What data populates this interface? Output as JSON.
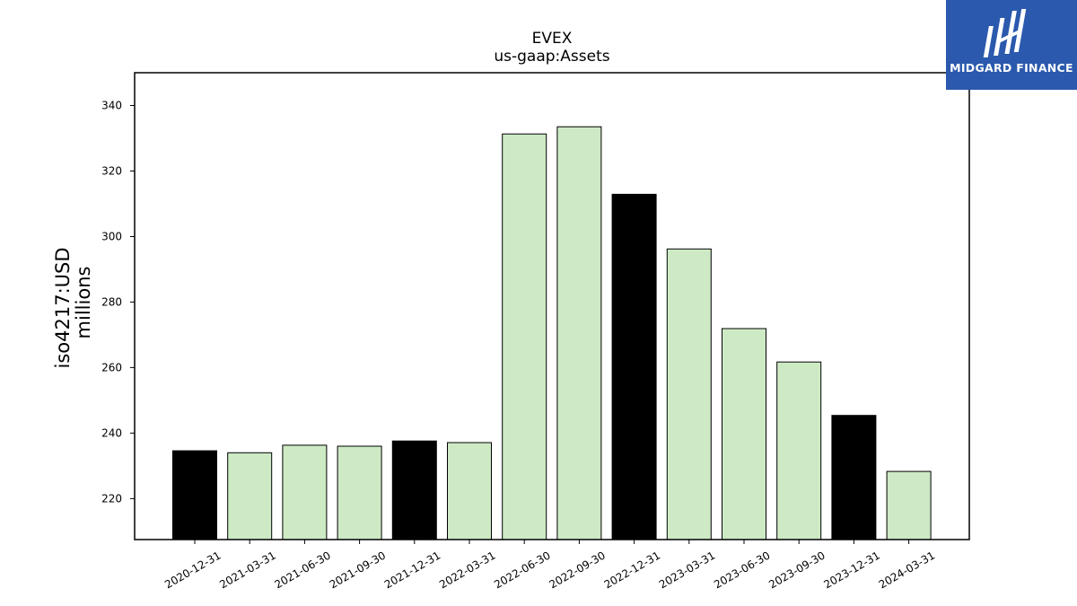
{
  "brand": {
    "name": "MIDGARD FINANCE",
    "background": "#2b59ad"
  },
  "chart_data": {
    "type": "bar",
    "title": "EVEX",
    "subtitle": "us-gaap:Assets",
    "ylabel": "iso4217:USD",
    "ylabel_unit": "millions",
    "xlabel": "",
    "categories": [
      "2020-12-31",
      "2021-03-31",
      "2021-06-30",
      "2021-09-30",
      "2021-12-31",
      "2022-03-31",
      "2022-06-30",
      "2022-09-30",
      "2022-12-31",
      "2023-03-31",
      "2023-06-30",
      "2023-09-30",
      "2023-12-31",
      "2024-03-31"
    ],
    "values": [
      234.6,
      234.0,
      236.3,
      236.0,
      237.6,
      237.1,
      331.3,
      333.5,
      312.9,
      296.2,
      271.9,
      261.7,
      245.4,
      228.3
    ],
    "bar_colors": [
      "#000000",
      "#cdeac5",
      "#cdeac5",
      "#cdeac5",
      "#000000",
      "#cdeac5",
      "#cdeac5",
      "#cdeac5",
      "#000000",
      "#cdeac5",
      "#cdeac5",
      "#cdeac5",
      "#000000",
      "#cdeac5"
    ],
    "ylim": [
      207.5,
      350
    ],
    "yticks": [
      220,
      240,
      260,
      280,
      300,
      320,
      340
    ],
    "grid": false,
    "legend": "none"
  }
}
